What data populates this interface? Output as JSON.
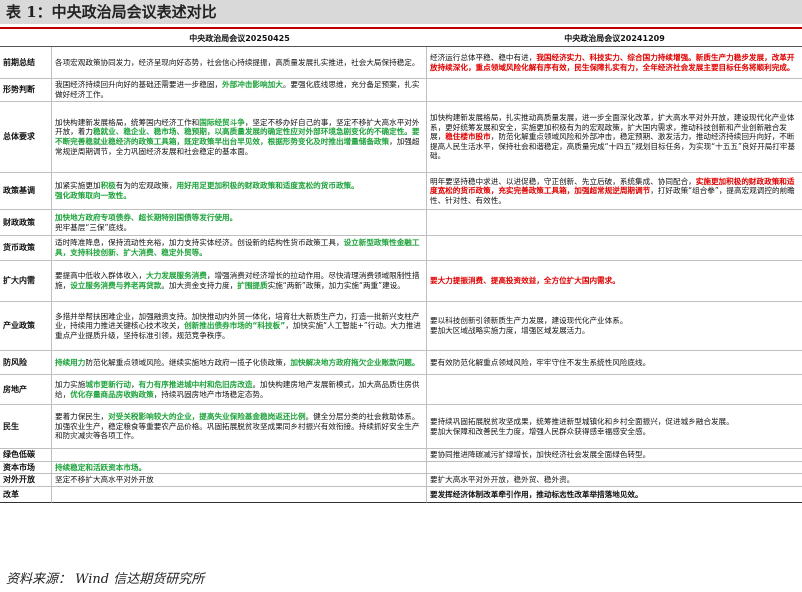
{
  "title": "表 1：中央政治局会议表述对比",
  "columns": {
    "blank": "",
    "left": "中央政治局会议20250425",
    "right": "中央政治局会议20241209"
  },
  "rows": [
    {
      "key": "前期总结",
      "left": [
        {
          "t": "各项宏观政策协同发力，经济呈现向好态势，社会信心持续提振，高质量发展扎实推进，社会大局保持稳定。"
        }
      ],
      "right": [
        {
          "t": "经济运行总体平稳、稳中有进，"
        },
        {
          "t": "我国经济实力、科技实力、综合国力持续增强。新质生产力稳步发展，改革开放持续深化，重点领域风险化解有序有效，民生保障扎实有力，全年经济社会发展主要目标任务将顺利完成。",
          "s": "r"
        }
      ]
    },
    {
      "key": "形势判断",
      "left": [
        {
          "t": "我国经济持续回升向好的基础还需要进一步稳固，"
        },
        {
          "t": "外部冲击影响加大",
          "s": "g"
        },
        {
          "t": "。要强化底线思维，充分备足预案，扎实做好经济工作。"
        }
      ],
      "right": []
    },
    {
      "key": "总体要求",
      "left": [
        {
          "t": "加快构建新发展格局，统筹国内经济工作和"
        },
        {
          "t": "国际经贸斗争",
          "s": "g"
        },
        {
          "t": "，坚定不移办好自己的事，坚定不移扩大高水平对外开放，着力"
        },
        {
          "t": "稳就业、稳企业、稳市场、稳预期，以高质量发展的确定性应对外部环境急剧变化的不确定性。要不断完善稳就业稳经济的政策工具箱，既定政策早出台早见效，根据形势变化及时推出增量储备政策",
          "s": "g"
        },
        {
          "t": "，加强超常规逆周期调节，全力巩固经济发展和社会稳定的基本面。"
        }
      ],
      "right": [
        {
          "t": "加快构建新发展格局，扎实推动高质量发展，进一步全面深化改革，扩大高水平对外开放，建设现代化产业体系，更好统筹发展和安全，实施更加积极有为的宏观政策，扩大国内需求，推动科技创新和产业创新融合发展，"
        },
        {
          "t": "稳住楼市股市",
          "s": "r"
        },
        {
          "t": "，防范化解重点领域风险和外部冲击，稳定预期、激发活力，推动经济持续回升向好，不断提高人民生活水平，保持社会和谐稳定，高质量完成“十四五”规划目标任务，为实现“十五五”良好开局打牢基础。"
        }
      ]
    },
    {
      "key": "政策基调",
      "left": [
        {
          "t": "加紧实施更加"
        },
        {
          "t": "积极",
          "s": "g"
        },
        {
          "t": "有为的宏观政策，"
        },
        {
          "t": "用好用足更加积极的财政政策和适度宽松的货币政策。",
          "s": "g"
        },
        {
          "br": true
        },
        {
          "t": "强化政策取向一致性。",
          "s": "g"
        }
      ],
      "right": [
        {
          "t": "明年要坚持稳中求进、以进促稳，守正创新、先立后破，系统集成、协同配合，"
        },
        {
          "t": "实施更加积极的财政政策和适度宽松的货币政策，充实完善政策工具箱，加强超常规逆周期调节",
          "s": "r"
        },
        {
          "t": "，打好政策“组合拳”，提高宏观调控的前瞻性、针对性、有效性。"
        }
      ]
    },
    {
      "key": "财政政策",
      "left": [
        {
          "t": "加快地方政府专项债券、超长期特别国债等发行使用。",
          "s": "g"
        },
        {
          "br": true
        },
        {
          "t": "兜牢基层“三保”底线。"
        }
      ],
      "right": []
    },
    {
      "key": "货币政策",
      "left": [
        {
          "t": "适时降准降息，保持流动性充裕，加力支持实体经济。创设新的结构性货币政策工具，"
        },
        {
          "t": "设立新型政策性金融工具，支持科技创新、扩大消费、稳定外贸等。",
          "s": "g"
        }
      ],
      "right": []
    },
    {
      "key": "扩大内需",
      "left": [
        {
          "t": "要提高中低收入群体收入，"
        },
        {
          "t": "大力发展服务消费",
          "s": "g"
        },
        {
          "t": "，增强消费对经济增长的拉动作用。尽快清理消费领域限制性措施，"
        },
        {
          "t": "设立服务消费与养老再贷款",
          "s": "g"
        },
        {
          "t": "。加大资金支持力度，"
        },
        {
          "t": "扩围提质",
          "s": "g"
        },
        {
          "t": "实施“两新”政策，加力实施“两重”建设。"
        }
      ],
      "right": [
        {
          "t": "要大力提振消费、提高投资效益，全方位扩大国内需求。",
          "s": "r"
        }
      ]
    },
    {
      "key": "产业政策",
      "left": [
        {
          "t": "多措并举帮扶困难企业，加强融资支持。加快推动内外贸一体化，培育壮大新质生产力，打造一批新兴支柱产业，持续用力推进关键核心技术攻关，"
        },
        {
          "t": "创新推出债券市场的“科技板”",
          "s": "g"
        },
        {
          "t": "，加快实施“人工智能+”行动。大力推进重点产业提质升级，坚持标准引领，规范竞争秩序。"
        }
      ],
      "right": [
        {
          "t": "要以科技创新引领新质生产力发展，建设现代化产业体系。"
        },
        {
          "br": true
        },
        {
          "t": "要加大区域战略实施力度，增强区域发展活力。"
        }
      ]
    },
    {
      "key": "防风险",
      "left": [
        {
          "t": "持续用力",
          "s": "g"
        },
        {
          "t": "防范化解重点领域风险。继续实施地方政府一揽子化债政策，"
        },
        {
          "t": "加快解决地方政府拖欠企业账款问题。",
          "s": "g"
        }
      ],
      "right": [
        {
          "t": "要有效防范化解重点领域风险，牢牢守住不发生系统性风险底线。"
        }
      ]
    },
    {
      "key": "房地产",
      "left": [
        {
          "t": "加力实施"
        },
        {
          "t": "城市更新行动",
          "s": "g"
        },
        {
          "t": "，"
        },
        {
          "t": "有力有序推进城中村和危旧房改造",
          "s": "g"
        },
        {
          "t": "。加快构建房地产发展新模式，加大高品质住房供给，"
        },
        {
          "t": "优化存量商品房收购政策",
          "s": "g"
        },
        {
          "t": "，持续巩固房地产市场稳定态势。"
        }
      ],
      "right": []
    },
    {
      "key": "民生",
      "left": [
        {
          "t": "要着力保民生，"
        },
        {
          "t": "对受关税影响较大的企业，提高失业保险基金稳岗返还比例",
          "s": "g"
        },
        {
          "t": "。健全分层分类的社会救助体系。加强农业生产，稳定粮食等重要农产品价格。巩固拓展脱贫攻坚成果同乡村振兴有效衔接。持续抓好安全生产和防灾减灾等各项工作。"
        }
      ],
      "right": [
        {
          "t": "要持续巩固拓展脱贫攻坚成果，统筹推进新型城镇化和乡村全面振兴，促进城乡融合发展。"
        },
        {
          "br": true
        },
        {
          "t": "要加大保障和改善民生力度，增强人民群众获得感幸福感安全感。"
        }
      ]
    },
    {
      "key": "绿色低碳",
      "left": [],
      "right": [
        {
          "t": "要协同推进降碳减污扩绿增长，加快经济社会发展全面绿色转型。"
        }
      ]
    },
    {
      "key": "资本市场",
      "left": [
        {
          "t": "持续稳定和活跃资本市场。",
          "s": "g"
        }
      ],
      "right": []
    },
    {
      "key": "对外开放",
      "left": [
        {
          "t": "坚定不移扩大高水平对外开放"
        }
      ],
      "right": [
        {
          "t": "要扩大高水平对外开放，稳外贸、稳外资。"
        }
      ]
    },
    {
      "key": "改革",
      "left": [],
      "right": [
        {
          "t": "要发挥经济体制改革牵引作用，推动标志性改革举措落地见效。",
          "s": "b"
        }
      ]
    }
  ],
  "row_heights": [],
  "source": "资料来源：    Wind  信达期货研究所"
}
